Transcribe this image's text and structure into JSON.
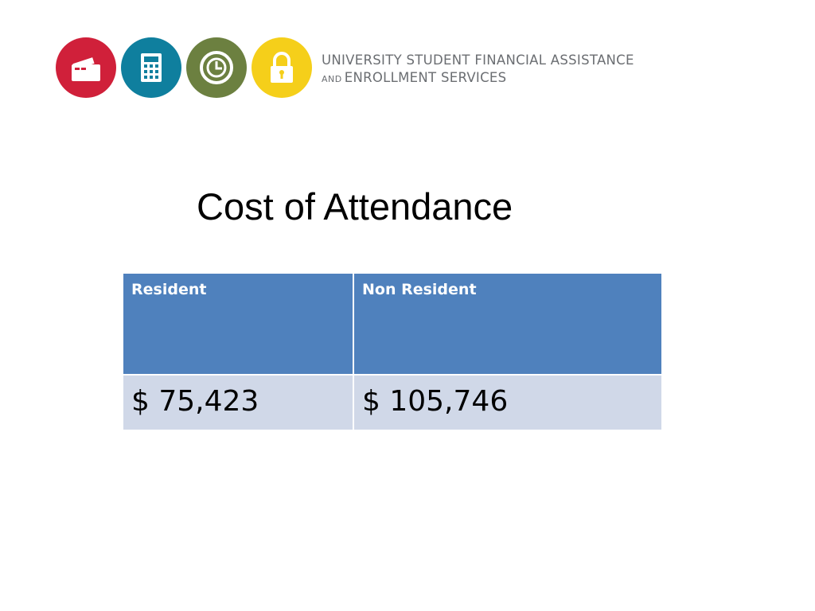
{
  "header": {
    "org_line1": "UNIVERSITY STUDENT FINANCIAL ASSISTANCE",
    "org_line2_small": "AND",
    "org_line2": "ENROLLMENT SERVICES",
    "icons": [
      {
        "name": "wallet-icon",
        "color": "#d0203a"
      },
      {
        "name": "calculator-icon",
        "color": "#0f7f9e"
      },
      {
        "name": "clock-icon",
        "color": "#6c8040"
      },
      {
        "name": "lock-icon",
        "color": "#f5cf1a"
      }
    ]
  },
  "title": "Cost of Attendance",
  "table": {
    "headers": [
      "Resident",
      "Non Resident"
    ],
    "rows": [
      [
        "$ 75,423",
        "$ 105,746"
      ]
    ],
    "header_color": "#4f81bd",
    "row_color": "#d0d8e8"
  }
}
